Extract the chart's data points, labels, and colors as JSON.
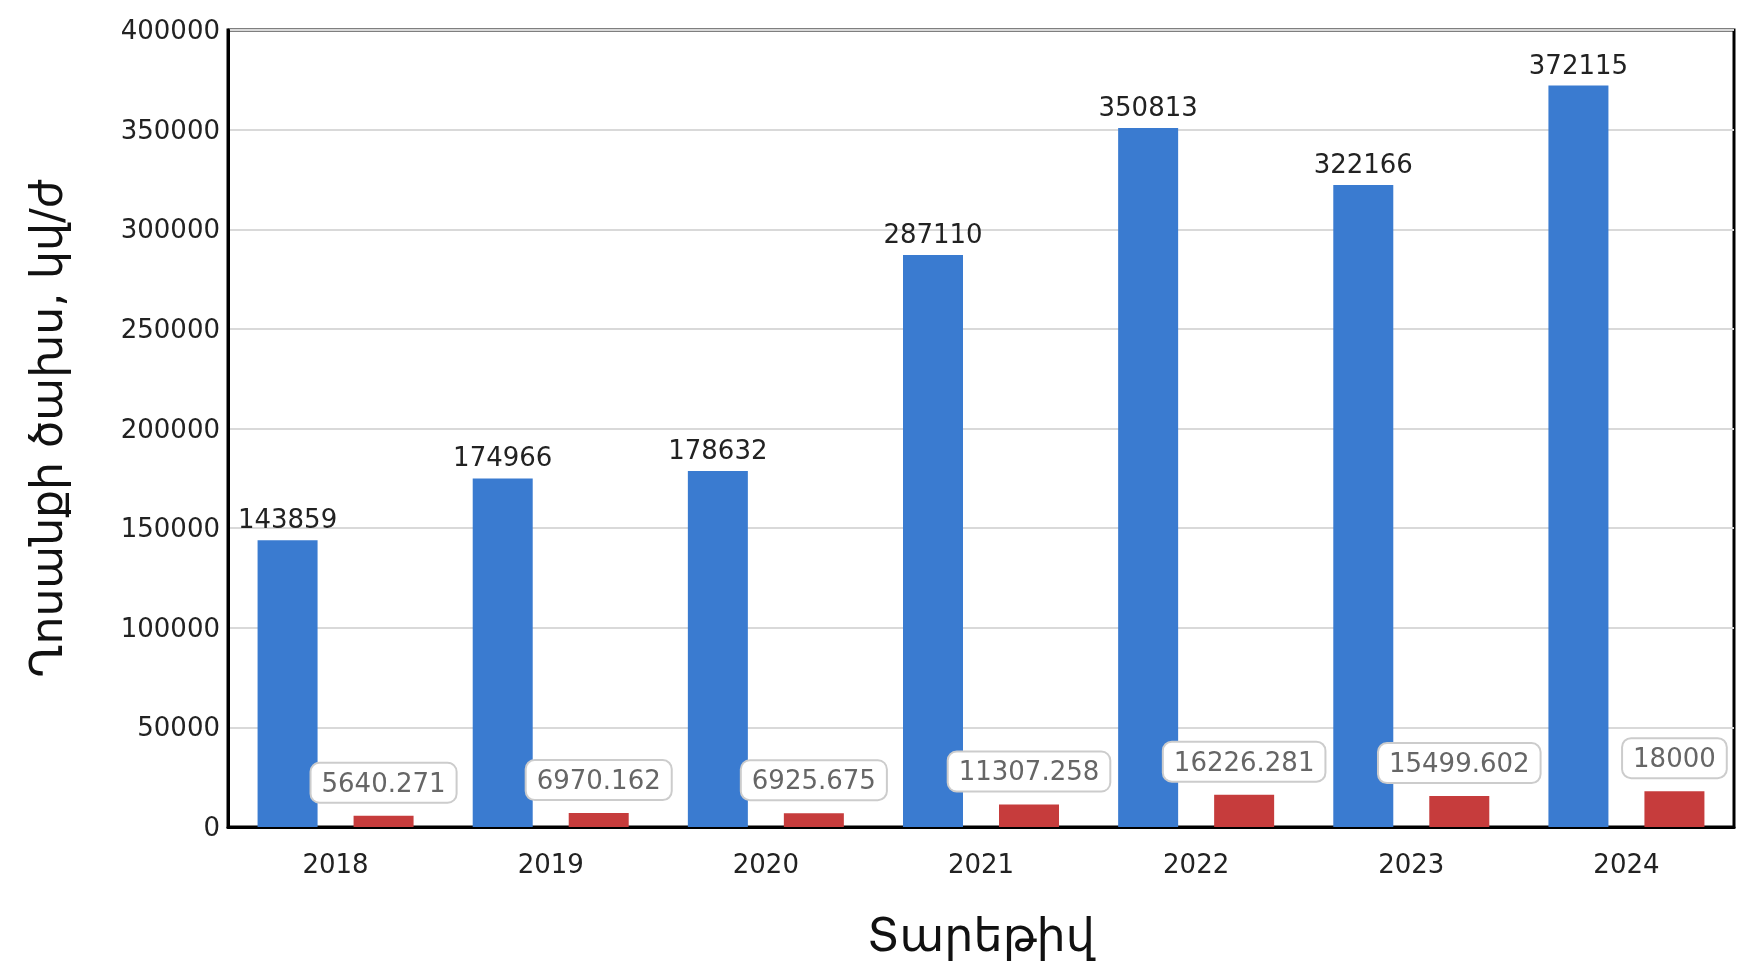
{
  "chart_data": {
    "type": "bar",
    "xlabel": "Տարեթիվ",
    "ylabel": "Ղոսանքի ծախս, կվ/ժ",
    "categories": [
      "2018",
      "2019",
      "2020",
      "2021",
      "2022",
      "2023",
      "2024"
    ],
    "series": [
      {
        "color": "#3a7bd0",
        "values": [
          143859,
          174966,
          178632,
          287110,
          350813,
          322166,
          372115
        ]
      },
      {
        "color": "#c63c3c",
        "values": [
          5640.271,
          6970.162,
          6925.675,
          11307.258,
          16226.281,
          15499.602,
          18000
        ]
      }
    ],
    "ylim": [
      0,
      400000
    ],
    "yticks": [
      0,
      50000,
      100000,
      150000,
      200000,
      250000,
      300000,
      350000,
      400000
    ],
    "grid": "y",
    "data_labels": true
  }
}
